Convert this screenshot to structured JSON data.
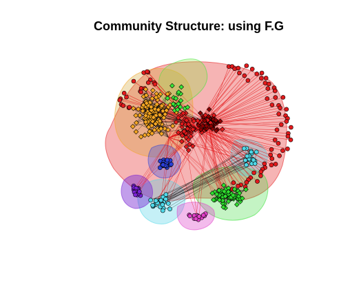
{
  "title": "Community Structure: using F.G",
  "colors": {
    "red": "#e31a1c",
    "orange": "#f5a623",
    "green": "#39e639",
    "cyan": "#4fd8e8",
    "blue": "#2a3fd6",
    "purple": "#7a22d6",
    "magenta": "#e040c8",
    "hub": "#8b0000",
    "edge_red": "#e31a1c",
    "edge_black": "#111111"
  },
  "communities": [
    {
      "name": "red",
      "color": "#e31a1c",
      "hull_fill": "rgba(227,26,28,0.33)"
    },
    {
      "name": "orange",
      "color": "#f5a623",
      "hull_fill": "rgba(210,160,40,0.30)"
    },
    {
      "name": "lime",
      "color": "#39e639",
      "hull_fill": "rgba(140,230,60,0.30)"
    },
    {
      "name": "green",
      "color": "#2fe02f",
      "hull_fill": "rgba(60,220,60,0.30)"
    },
    {
      "name": "cyan",
      "color": "#4fd8e8",
      "hull_fill": "rgba(80,210,230,0.33)"
    },
    {
      "name": "blue",
      "color": "#2a3fd6",
      "hull_fill": "rgba(60,80,220,0.35)"
    },
    {
      "name": "purple",
      "color": "#7a22d6",
      "hull_fill": "rgba(120,40,210,0.45)"
    },
    {
      "name": "magenta",
      "color": "#e040c8",
      "hull_fill": "rgba(220,60,200,0.35)"
    }
  ]
}
